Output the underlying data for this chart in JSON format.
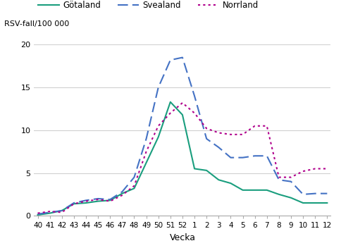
{
  "x_labels": [
    "40",
    "41",
    "42",
    "43",
    "44",
    "45",
    "46",
    "47",
    "48",
    "49",
    "50",
    "51",
    "52",
    "1",
    "2",
    "3",
    "4",
    "5",
    "6",
    "7",
    "8",
    "9",
    "10",
    "11",
    "12"
  ],
  "gotaland": [
    0.1,
    0.3,
    0.6,
    1.4,
    1.5,
    1.7,
    1.8,
    2.6,
    3.2,
    6.2,
    9.2,
    13.3,
    11.8,
    5.5,
    5.3,
    4.2,
    3.8,
    3.0,
    3.0,
    3.0,
    2.5,
    2.1,
    1.5,
    1.5,
    1.5
  ],
  "svealand": [
    0.2,
    0.4,
    0.6,
    1.5,
    1.8,
    2.0,
    1.9,
    2.8,
    4.5,
    9.0,
    15.0,
    18.2,
    18.5,
    14.0,
    9.0,
    8.0,
    6.8,
    6.8,
    7.0,
    7.0,
    4.2,
    4.0,
    2.5,
    2.6,
    2.6
  ],
  "norrland": [
    0.3,
    0.5,
    0.4,
    1.4,
    1.7,
    1.9,
    1.7,
    2.4,
    3.5,
    7.5,
    10.5,
    12.0,
    13.2,
    12.0,
    10.2,
    9.7,
    9.5,
    9.5,
    10.5,
    10.5,
    4.5,
    4.5,
    5.2,
    5.5,
    5.5
  ],
  "gotaland_color": "#1a9e7e",
  "svealand_color": "#4472c4",
  "norrland_color": "#b0008c",
  "ylabel": "RSV-fall/100 000",
  "xlabel": "Vecka",
  "ylim": [
    0,
    20
  ],
  "yticks": [
    0,
    5,
    10,
    15,
    20
  ],
  "legend_labels": [
    "Götaland",
    "Svealand",
    "Norrland"
  ],
  "background_color": "#ffffff",
  "grid_color": "#d0d0d0"
}
